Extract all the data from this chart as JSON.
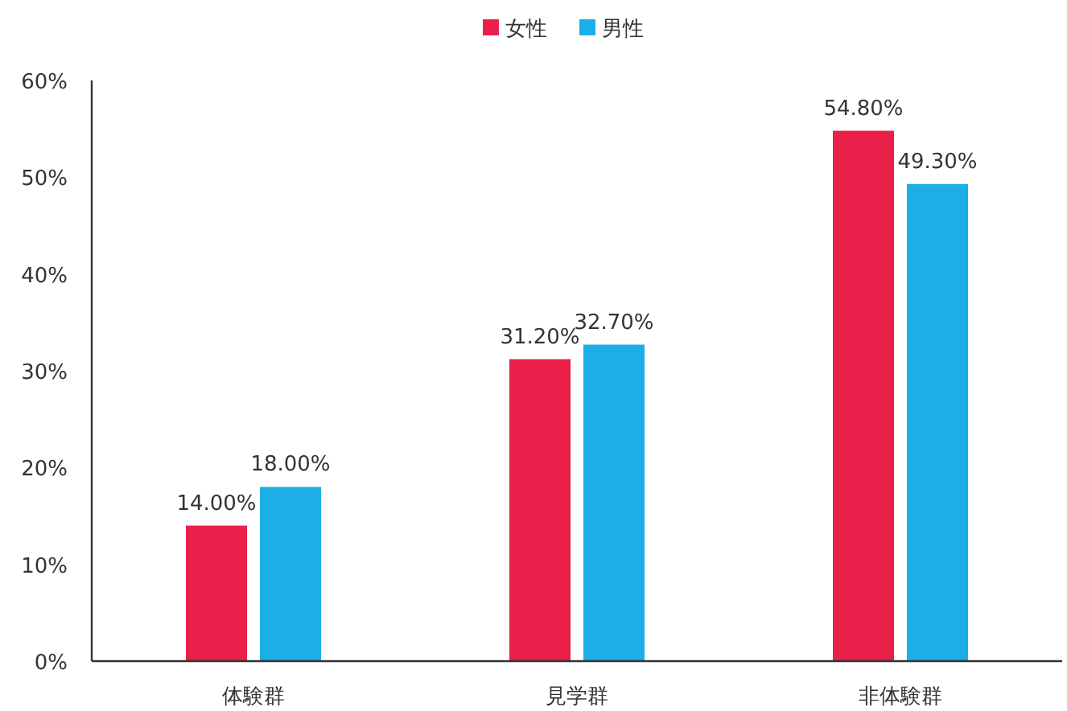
{
  "chart_data": {
    "type": "bar",
    "categories": [
      "体験群",
      "見学群",
      "非体験群"
    ],
    "series": [
      {
        "name": "女性",
        "color": "#e8204a",
        "values": [
          14.0,
          31.2,
          54.8
        ],
        "value_labels": [
          "14.00%",
          "31.20%",
          "54.80%"
        ]
      },
      {
        "name": "男性",
        "color": "#1caee6",
        "values": [
          18.0,
          32.7,
          49.3
        ],
        "value_labels": [
          "18.00%",
          "32.70%",
          "49.30%"
        ]
      }
    ],
    "ylim": [
      0,
      60
    ],
    "yticks": [
      {
        "value": 0,
        "label": "0%"
      },
      {
        "value": 10,
        "label": "10%"
      },
      {
        "value": 20,
        "label": "20%"
      },
      {
        "value": 30,
        "label": "30%"
      },
      {
        "value": 40,
        "label": "40%"
      },
      {
        "value": 50,
        "label": "50%"
      },
      {
        "value": 60,
        "label": "60%"
      }
    ],
    "grid": false,
    "legend": "top"
  }
}
